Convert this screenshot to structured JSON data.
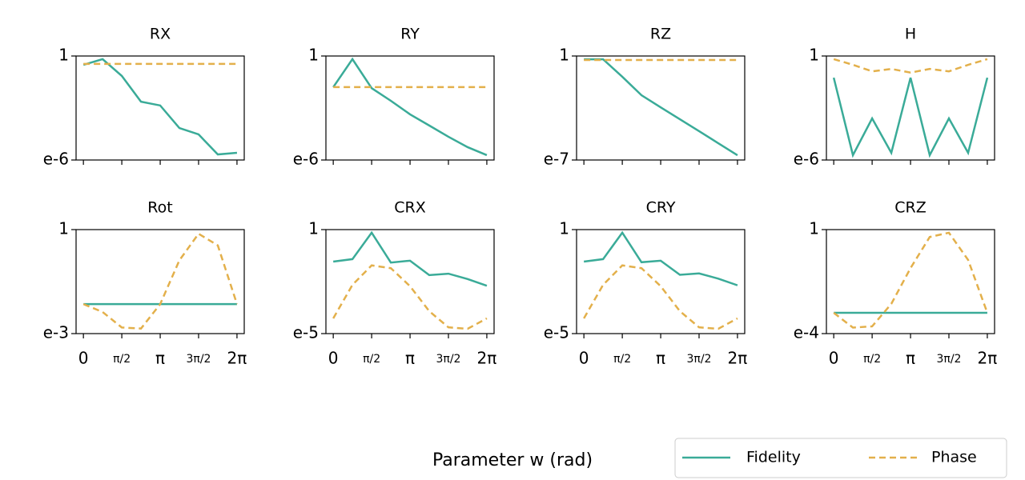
{
  "supxlabel": "Parameter w (rad)",
  "legend": "lower right",
  "chart_data": [
    {
      "type": "line",
      "title": "RX",
      "log_y": true,
      "x": [
        0,
        0.785,
        1.571,
        2.356,
        3.142,
        3.927,
        4.712,
        5.498,
        6.283
      ],
      "xlim": [
        -0.3,
        6.58
      ],
      "xticks": [
        0,
        {
          "value": 1.571,
          "label": "π/2"
        },
        {
          "value": 3.142,
          "label": "π"
        },
        {
          "value": 4.712,
          "label": "3π/2"
        },
        {
          "value": 6.283,
          "label": "2π"
        }
      ],
      "ylim": [
        1e-06,
        1
      ],
      "yticks": [
        {
          "value": 1e-06,
          "label": "e-6"
        },
        1
      ],
      "series": [
        {
          "name": "Fidelity",
          "color": "#3aab98",
          "dash": false,
          "values": [
            0.31,
            0.66,
            0.071,
            0.0023,
            0.0014,
            7e-05,
            3e-05,
            2.1e-06,
            2.6e-06
          ]
        },
        {
          "name": "Phase",
          "color": "#e3b04b",
          "dash": true,
          "values": [
            0.35,
            0.35,
            0.35,
            0.35,
            0.35,
            0.35,
            0.35,
            0.35,
            0.35
          ]
        }
      ]
    },
    {
      "type": "line",
      "title": "RY",
      "log_y": true,
      "x": [
        0,
        0.785,
        1.571,
        2.356,
        3.142,
        3.927,
        4.712,
        5.498,
        6.283
      ],
      "xlim": [
        -0.3,
        6.58
      ],
      "xticks": [
        0,
        {
          "value": 1.571,
          "label": "π/2"
        },
        {
          "value": 3.142,
          "label": "π"
        },
        {
          "value": 4.712,
          "label": "3π/2"
        },
        {
          "value": 6.283,
          "label": "2π"
        }
      ],
      "ylim": [
        1e-06,
        1
      ],
      "yticks": [
        {
          "value": 1e-06,
          "label": "e-6"
        },
        1
      ],
      "series": [
        {
          "name": "Fidelity",
          "color": "#3aab98",
          "dash": false,
          "values": [
            0.016,
            0.66,
            0.014,
            0.0026,
            0.00043,
            9.8e-05,
            2.2e-05,
            5.5e-06,
            1.9e-06
          ]
        },
        {
          "name": "Phase",
          "color": "#e3b04b",
          "dash": true,
          "values": [
            0.016,
            0.016,
            0.016,
            0.016,
            0.016,
            0.016,
            0.016,
            0.016,
            0.016
          ]
        }
      ]
    },
    {
      "type": "line",
      "title": "RZ",
      "log_y": true,
      "x": [
        0,
        0.785,
        1.571,
        2.356,
        3.142,
        3.927,
        4.712,
        5.498,
        6.283
      ],
      "xlim": [
        -0.3,
        6.58
      ],
      "xticks": [
        0,
        {
          "value": 1.571,
          "label": "π/2"
        },
        {
          "value": 3.142,
          "label": "π"
        },
        {
          "value": 4.712,
          "label": "3π/2"
        },
        {
          "value": 6.283,
          "label": "2π"
        }
      ],
      "ylim": [
        1e-07,
        1
      ],
      "yticks": [
        {
          "value": 1e-07,
          "label": "e-7"
        },
        1
      ],
      "series": [
        {
          "name": "Fidelity",
          "color": "#3aab98",
          "dash": false,
          "values": [
            0.6,
            0.6,
            0.04,
            0.0023,
            0.00035,
            5.5e-05,
            8.7e-06,
            1.35e-06,
            2.1e-07
          ]
        },
        {
          "name": "Phase",
          "color": "#e3b04b",
          "dash": true,
          "values": [
            0.54,
            0.54,
            0.54,
            0.54,
            0.54,
            0.54,
            0.54,
            0.54,
            0.54
          ]
        }
      ]
    },
    {
      "type": "line",
      "title": "H",
      "log_y": true,
      "x": [
        0,
        0.785,
        1.571,
        2.356,
        3.142,
        3.927,
        4.712,
        5.498,
        6.283
      ],
      "xlim": [
        -0.3,
        6.58
      ],
      "xticks": [
        0,
        {
          "value": 1.571,
          "label": "π/2"
        },
        {
          "value": 3.142,
          "label": "π"
        },
        {
          "value": 4.712,
          "label": "3π/2"
        },
        {
          "value": 6.283,
          "label": "2π"
        }
      ],
      "ylim": [
        1e-06,
        1
      ],
      "yticks": [
        {
          "value": 1e-06,
          "label": "e-6"
        },
        1
      ],
      "series": [
        {
          "name": "Fidelity",
          "color": "#3aab98",
          "dash": false,
          "values": [
            0.056,
            1.9e-06,
            0.00025,
            2.6e-06,
            0.056,
            1.9e-06,
            0.00025,
            2.6e-06,
            0.056
          ]
        },
        {
          "name": "Phase",
          "color": "#e3b04b",
          "dash": true,
          "values": [
            0.66,
            0.31,
            0.13,
            0.18,
            0.11,
            0.18,
            0.13,
            0.31,
            0.66
          ]
        }
      ]
    },
    {
      "type": "line",
      "title": "Rot",
      "log_y": true,
      "x": [
        0,
        0.785,
        1.571,
        2.356,
        3.142,
        3.927,
        4.712,
        5.498,
        6.283
      ],
      "xlim": [
        -0.3,
        6.58
      ],
      "xticks": [
        0,
        {
          "value": 1.571,
          "label": "π/2"
        },
        {
          "value": 3.142,
          "label": "π"
        },
        {
          "value": 4.712,
          "label": "3π/2"
        },
        {
          "value": 6.283,
          "label": "2π"
        }
      ],
      "ylim": [
        0.001,
        1
      ],
      "yticks": [
        {
          "value": 0.001,
          "label": "e-3"
        },
        1
      ],
      "series": [
        {
          "name": "Fidelity",
          "color": "#3aab98",
          "dash": false,
          "values": [
            0.0071,
            0.0071,
            0.0071,
            0.0071,
            0.0071,
            0.0071,
            0.0071,
            0.0071,
            0.0071
          ]
        },
        {
          "name": "Phase",
          "color": "#e3b04b",
          "dash": true,
          "values": [
            0.0071,
            0.0042,
            0.0015,
            0.0014,
            0.0071,
            0.13,
            0.76,
            0.35,
            0.0071
          ]
        }
      ]
    },
    {
      "type": "line",
      "title": "CRX",
      "log_y": true,
      "x": [
        0,
        0.785,
        1.571,
        2.356,
        3.142,
        3.927,
        4.712,
        5.498,
        6.283
      ],
      "xlim": [
        -0.3,
        6.58
      ],
      "xticks": [
        0,
        {
          "value": 1.571,
          "label": "π/2"
        },
        {
          "value": 3.142,
          "label": "π"
        },
        {
          "value": 4.712,
          "label": "3π/2"
        },
        {
          "value": 6.283,
          "label": "2π"
        }
      ],
      "ylim": [
        1e-05,
        1
      ],
      "yticks": [
        {
          "value": 1e-05,
          "label": "e-5"
        },
        1
      ],
      "series": [
        {
          "name": "Fidelity",
          "color": "#3aab98",
          "dash": false,
          "values": [
            0.029,
            0.038,
            0.71,
            0.026,
            0.032,
            0.0065,
            0.0076,
            0.0042,
            0.002
          ]
        },
        {
          "name": "Phase",
          "color": "#e3b04b",
          "dash": true,
          "values": [
            5.4e-05,
            0.0022,
            0.019,
            0.014,
            0.0019,
            0.00012,
            2e-05,
            1.7e-05,
            5.4e-05
          ]
        }
      ]
    },
    {
      "type": "line",
      "title": "CRY",
      "log_y": true,
      "x": [
        0,
        0.785,
        1.571,
        2.356,
        3.142,
        3.927,
        4.712,
        5.498,
        6.283
      ],
      "xlim": [
        -0.3,
        6.58
      ],
      "xticks": [
        0,
        {
          "value": 1.571,
          "label": "π/2"
        },
        {
          "value": 3.142,
          "label": "π"
        },
        {
          "value": 4.712,
          "label": "3π/2"
        },
        {
          "value": 6.283,
          "label": "2π"
        }
      ],
      "ylim": [
        1e-05,
        1
      ],
      "yticks": [
        {
          "value": 1e-05,
          "label": "e-5"
        },
        1
      ],
      "series": [
        {
          "name": "Fidelity",
          "color": "#3aab98",
          "dash": false,
          "values": [
            0.029,
            0.038,
            0.71,
            0.027,
            0.032,
            0.0067,
            0.0078,
            0.0044,
            0.0021
          ]
        },
        {
          "name": "Phase",
          "color": "#e3b04b",
          "dash": true,
          "values": [
            5.4e-05,
            0.0022,
            0.019,
            0.014,
            0.0019,
            0.00012,
            2e-05,
            1.7e-05,
            5.4e-05
          ]
        }
      ]
    },
    {
      "type": "line",
      "title": "CRZ",
      "log_y": true,
      "x": [
        0,
        0.785,
        1.571,
        2.356,
        3.142,
        3.927,
        4.712,
        5.498,
        6.283
      ],
      "xlim": [
        -0.3,
        6.58
      ],
      "xticks": [
        0,
        {
          "value": 1.571,
          "label": "π/2"
        },
        {
          "value": 3.142,
          "label": "π"
        },
        {
          "value": 4.712,
          "label": "3π/2"
        },
        {
          "value": 6.283,
          "label": "2π"
        }
      ],
      "ylim": [
        0.0001,
        1
      ],
      "yticks": [
        {
          "value": 0.0001,
          "label": "e-4"
        },
        1
      ],
      "series": [
        {
          "name": "Fidelity",
          "color": "#3aab98",
          "dash": false,
          "values": [
            0.00063,
            0.00063,
            0.00063,
            0.00063,
            0.00063,
            0.00063,
            0.00063,
            0.00063,
            0.00063
          ]
        },
        {
          "name": "Phase",
          "color": "#e3b04b",
          "dash": true,
          "values": [
            0.00063,
            0.00017,
            0.00019,
            0.0014,
            0.033,
            0.52,
            0.76,
            0.068,
            0.00063
          ]
        }
      ]
    }
  ]
}
